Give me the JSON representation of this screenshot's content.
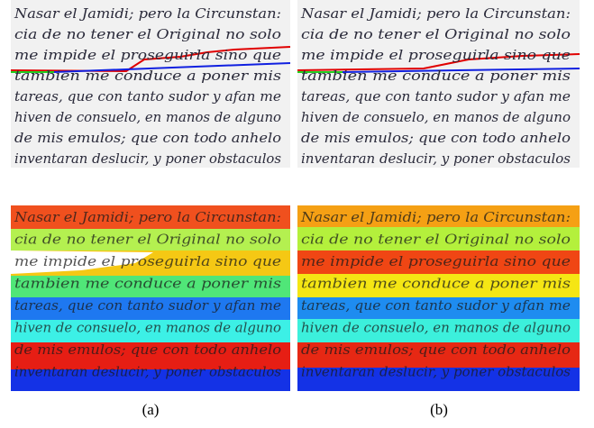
{
  "figure": {
    "text_lines": [
      "Nasar el Jamidi; pero la Circunstan:",
      "cia de no tener el Original no solo",
      "me impide el proseguirla sino que",
      "tambien me conduce a poner mis",
      "tareas, que con tanto sudor y afan me",
      "hiven de consuelo, en manos de alguno",
      "de mis emulos; que con todo anhelo",
      "inventaran deslucir, y poner obstaculos"
    ],
    "captions": [
      "(a)",
      "(b)"
    ]
  }
}
